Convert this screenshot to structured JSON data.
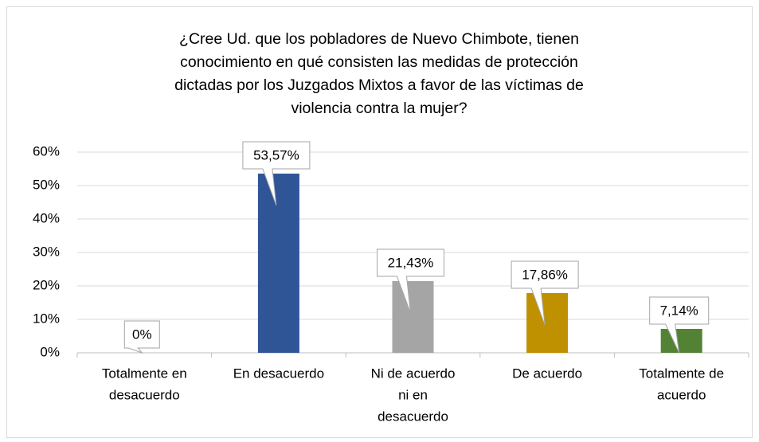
{
  "chart_data": {
    "type": "bar",
    "title": [
      "¿Cree Ud. que los pobladores de Nuevo Chimbote, tienen",
      "conocimiento en qué consisten las medidas de protección",
      "dictadas por los Juzgados Mixtos a favor de las víctimas de",
      "violencia contra la mujer?"
    ],
    "categories": [
      [
        "Totalmente en",
        "desacuerdo"
      ],
      [
        "En desacuerdo"
      ],
      [
        "Ni de acuerdo",
        "ni en",
        "desacuerdo"
      ],
      [
        "De acuerdo"
      ],
      [
        "Totalmente de",
        "acuerdo"
      ]
    ],
    "values": [
      0,
      53.57,
      21.43,
      17.86,
      7.14
    ],
    "value_labels": [
      "0%",
      "53,57%",
      "21,43%",
      "17,86%",
      "7,14%"
    ],
    "colors": [
      "#2f5597",
      "#2f5597",
      "#a5a5a5",
      "#bf9000",
      "#548235"
    ],
    "ylim": [
      0,
      60
    ],
    "yticks": [
      {
        "value": 0,
        "label": "0%"
      },
      {
        "value": 10,
        "label": "10%"
      },
      {
        "value": 20,
        "label": "20%"
      },
      {
        "value": 30,
        "label": "30%"
      },
      {
        "value": 40,
        "label": "40%"
      },
      {
        "value": 50,
        "label": "50%"
      },
      {
        "value": 60,
        "label": "60%"
      }
    ],
    "grid": true
  }
}
